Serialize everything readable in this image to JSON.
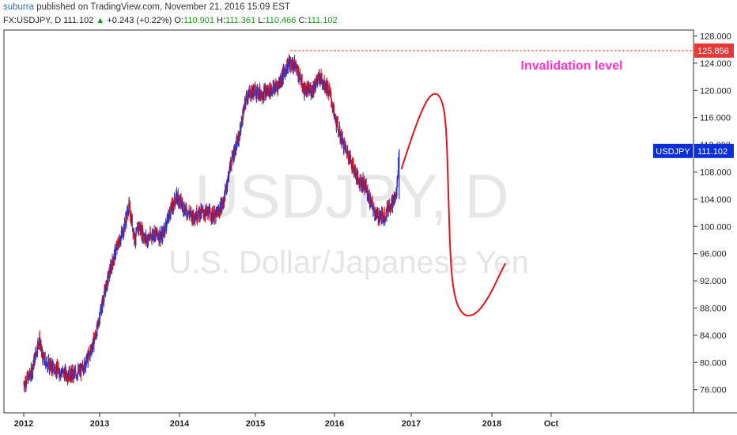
{
  "header": {
    "author": "suburra",
    "published_text": " published on TradingView.com, November 21, 2016 15:09 EST",
    "symbol": "FX:USDJPY, D",
    "last": "111.102",
    "arrow": "▲",
    "change": "+0.243 (+0.22%)",
    "open_label": "O:",
    "open": "110.901",
    "high_label": "H:",
    "high": "111.361",
    "low_label": "L:",
    "low": "110.466",
    "close_label": "C:",
    "close": "111.102"
  },
  "watermark": {
    "line1": "USDJPY, D",
    "line2": "U.S. Dollar/Japanese Yen"
  },
  "chart_data": {
    "type": "line",
    "title": "",
    "xlabel": "",
    "ylabel": "",
    "ylim": [
      73.0,
      129.0
    ],
    "y_ticks": [
      "128.000",
      "124.000",
      "120.000",
      "116.000",
      "112.000",
      "108.000",
      "104.000",
      "100.000",
      "96.000",
      "92.000",
      "88.000",
      "84.000",
      "80.000",
      "76.000"
    ],
    "x_ticks": [
      "2012",
      "2013",
      "2014",
      "2015",
      "2016",
      "2017",
      "2018",
      "Oct"
    ],
    "series": [
      {
        "name": "USDJPY",
        "x": [
          2012.0,
          2012.1,
          2012.2,
          2012.25,
          2012.35,
          2012.45,
          2012.55,
          2012.65,
          2012.75,
          2012.85,
          2012.95,
          2013.0,
          2013.1,
          2013.2,
          2013.3,
          2013.37,
          2013.45,
          2013.5,
          2013.6,
          2013.7,
          2013.8,
          2013.9,
          2014.0,
          2014.1,
          2014.2,
          2014.3,
          2014.4,
          2014.5,
          2014.6,
          2014.7,
          2014.8,
          2014.9,
          2015.0,
          2015.1,
          2015.2,
          2015.3,
          2015.45,
          2015.55,
          2015.65,
          2015.75,
          2015.85,
          2015.95,
          2016.0,
          2016.05,
          2016.15,
          2016.25,
          2016.35,
          2016.45,
          2016.5,
          2016.6,
          2016.7,
          2016.75,
          2016.8,
          2016.85,
          2016.89
        ],
        "y": [
          76.8,
          78.5,
          83.5,
          80.5,
          79.5,
          78.8,
          78.3,
          78.2,
          78.8,
          81.0,
          84.5,
          87.5,
          92.5,
          96.5,
          99.5,
          103.0,
          98.0,
          100.0,
          98.0,
          99.0,
          98.5,
          102.0,
          104.5,
          102.5,
          101.5,
          102.0,
          102.0,
          101.5,
          103.5,
          109.5,
          113.0,
          119.0,
          120.0,
          119.5,
          120.0,
          120.5,
          124.0,
          123.5,
          120.0,
          120.0,
          122.0,
          120.5,
          119.0,
          116.0,
          112.5,
          110.0,
          107.0,
          106.0,
          104.0,
          101.5,
          101.5,
          103.0,
          103.5,
          104.5,
          111.102
        ]
      },
      {
        "name": "Projection",
        "x": [
          2016.92,
          2017.05,
          2017.18,
          2017.3,
          2017.42,
          2017.5,
          2017.53,
          2017.56,
          2017.62,
          2017.72,
          2017.82,
          2017.92,
          2018.02,
          2018.12,
          2018.2,
          2018.27
        ],
        "y": [
          108.5,
          113.0,
          117.0,
          119.5,
          119.5,
          116.0,
          105.0,
          94.0,
          89.0,
          87.0,
          86.8,
          87.5,
          89.0,
          91.0,
          93.0,
          94.5
        ]
      }
    ],
    "invalidation_level": 125.856,
    "invalidation_label": "Invalidation level",
    "price_tags": [
      {
        "label": "125.856",
        "value": 125.856,
        "color": "#e53935"
      },
      {
        "name": "USDJPY",
        "label": "111.102",
        "value": 111.102,
        "color": "#0a2fd6"
      }
    ],
    "grid": false,
    "legend": "none",
    "colors": {
      "up": "#2233cc",
      "down": "#dd1111",
      "projection": "#e3141a",
      "annotation": "#ff33cc"
    }
  }
}
